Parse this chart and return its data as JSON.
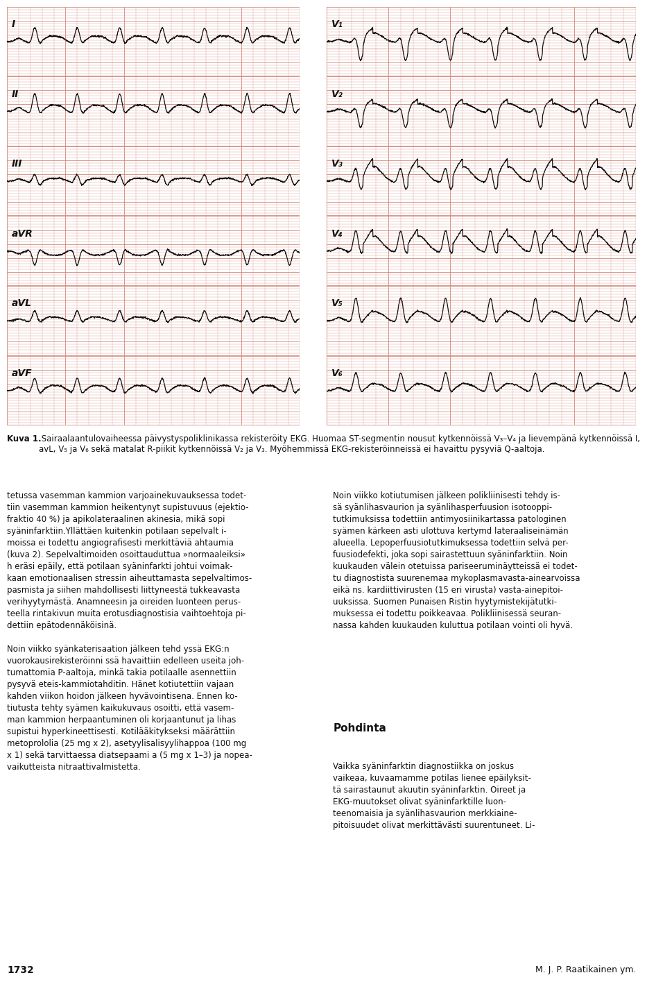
{
  "page_bg": "#ffffff",
  "ecg_bg": "#f5c0aa",
  "ecg_grid_major": "#d4887a",
  "ecg_grid_minor": "#e8a898",
  "ecg_line": "#111111",
  "caption_bold": "Kuva 1.",
  "caption_text": " Sairaalaantulovaiheessa päivystyspoliklinikassa rekisteröity EKG. Huomaa ST-segmentin nousut kytkennöissä V₃–V₄ ja lievempänä kytkennöissä I, avL, V₅ ja V₆ sekä matalat R-piikit kytkennöissä V₂ ja V₃. Myöhemmissä EKG-rekisteröinneissä ei havaittu pysyviä Q-aaltoja.",
  "body_left": "tetussa vasemman kammion varjoainekuvauksessa todet-\ntiin vasemman kammion heikentynyt supistuvuus (ejektio-\nfraktio 40 %) ja apikolateraalinen akinesia, mikä sopi\nsyäninfarktiin.Yllättäen kuitenkin potilaan sepelvalt i-\nmoissa ei todettu angiografisesti merkittäviä ahtaumia\n(kuva 2). Sepelvaltimoiden osoittauduttua »normaaleiksi»\nh eräsi epäily, että potilaan syäninfarkti johtui voimak-\nkaan emotionaalisen stressin aiheuttamasta sepelvaltimos-\npasmista ja siihen mahdollisesti liittyneestä tukkeavasta\nverihyytymästä. Anamneesin ja oireiden luonteen perus-\nteella rintakivun muita erotusdiagnostisia vaihtoehtoja pi-\ndettiin epätodennäköisinä.\n\nNoin viikko syänkaterisaation jälkeen tehd yssä EKG:n\nvuorokausirekisteröinni ssä havaittiin edelleen useita joh-\ntumattomia P-aaltoja, minkä takia potilaalle asennettiin\npysyvä eteis-kammiotahditin. Hänet kotiutettiin vajaan\nkahden viikon hoidon jälkeen hyvävointisena. Ennen ko-\ntiutusta tehty syämen kaikukuvaus osoitti, että vasem-\nman kammion herpaantuminen oli korjaantunut ja lihas\nsupistui hyperkineettisesti. Kotilääkitykseksi määrättiin\nmetoprololia (25 mg x 2), asetyylisalisyylihappoa (100 mg\nx 1) sekä tarvittaessa diatsepaami a (5 mg x 1–3) ja nopea-\nvaikutteista nitraattivalmistetta.",
  "body_right": "Noin viikko kotiutumisen jälkeen polikliinisesti tehdy is-\nsä syänlihasvaurion ja syänlihasperfuusion isotooppi-\ntutkimuksissa todettiin antimyosiinikartassa patologinen\nsyämen kärkeen asti ulottuva kertymd lateraaliseinämän\nalueella. Lepoperfuusiotutkimuksessa todettiin selvä per-\nfuusiodefekti, joka sopi sairastettuun syäninfarktiin. Noin\nkuukauden välein otetuissa pariseeruminäytteissä ei todet-\ntu diagnostista suurenemaa mykoplasmavasta-ainearvoissa\neikä ns. kardiittivirusten (15 eri virusta) vasta-ainepitoi-\nuuksissa. Suomen Punaisen Ristin hyytymistekijätutki-\nmuksessa ei todettu poikkeavaa. Polikliinisessä seuran-\nnassa kahden kuukauden kuluttua potilaan vointi oli hyvä.",
  "section_header": "Pohdinta",
  "section_body": "Vaikka syäninfarktin diagnostiikka on joskus\nvaikeaa, kuvaamamme potilas lienee epäilyksit-\ntä sairastaunut akuutin syäninfarktin. Oireet ja\nEKG-muutokset olivat syäninfarktille luon-\nteenomaisia ja syänlihasvaurion merkkiaine-\npitoisuudet olivat merkittävästi suurentuneet. Li-",
  "page_num": "1732",
  "author": "M. J. P. Raatikainen ym.",
  "left_leads": [
    "I",
    "II",
    "III",
    "aVR",
    "aVL",
    "aVF"
  ],
  "right_leads": [
    "V₁",
    "V₂",
    "V₃",
    "V₄",
    "V₅",
    "V₆"
  ],
  "font_size_caption": 8.5,
  "font_size_body": 8.5,
  "font_size_section": 11,
  "font_size_lead": 10
}
